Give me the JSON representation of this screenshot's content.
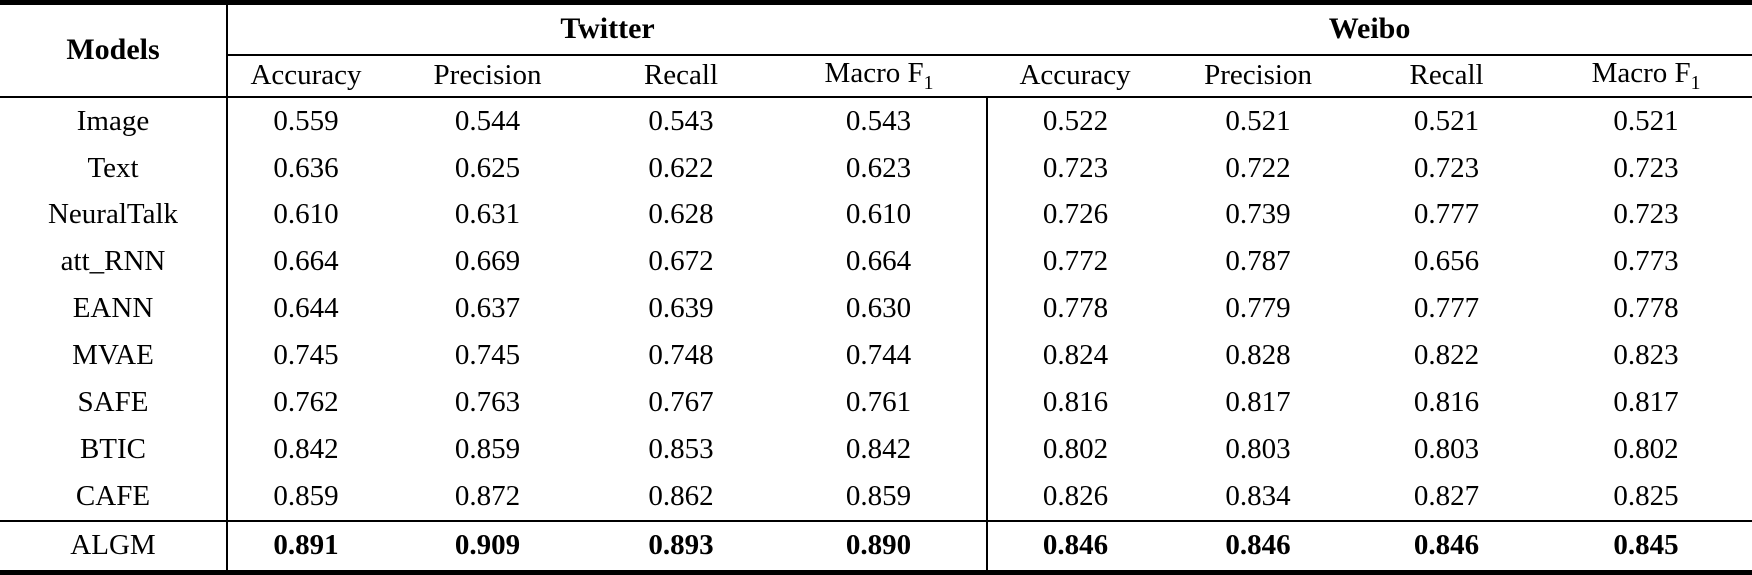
{
  "table": {
    "corner_header": "Models",
    "groups": [
      {
        "label": "Twitter"
      },
      {
        "label": "Weibo"
      }
    ],
    "subheaders": [
      {
        "label": "Accuracy"
      },
      {
        "label": "Precision"
      },
      {
        "label": "Recall"
      },
      {
        "label": "Macro F",
        "sub": "1"
      },
      {
        "label": "Accuracy"
      },
      {
        "label": "Precision"
      },
      {
        "label": "Recall"
      },
      {
        "label": "Macro F",
        "sub": "1"
      }
    ],
    "rows": [
      {
        "model": "Image",
        "twitter": [
          "0.559",
          "0.544",
          "0.543",
          "0.543"
        ],
        "weibo": [
          "0.522",
          "0.521",
          "0.521",
          "0.521"
        ],
        "highlight": false
      },
      {
        "model": "Text",
        "twitter": [
          "0.636",
          "0.625",
          "0.622",
          "0.623"
        ],
        "weibo": [
          "0.723",
          "0.722",
          "0.723",
          "0.723"
        ],
        "highlight": false
      },
      {
        "model": "NeuralTalk",
        "twitter": [
          "0.610",
          "0.631",
          "0.628",
          "0.610"
        ],
        "weibo": [
          "0.726",
          "0.739",
          "0.777",
          "0.723"
        ],
        "highlight": false
      },
      {
        "model": "att_RNN",
        "twitter": [
          "0.664",
          "0.669",
          "0.672",
          "0.664"
        ],
        "weibo": [
          "0.772",
          "0.787",
          "0.656",
          "0.773"
        ],
        "highlight": false
      },
      {
        "model": "EANN",
        "twitter": [
          "0.644",
          "0.637",
          "0.639",
          "0.630"
        ],
        "weibo": [
          "0.778",
          "0.779",
          "0.777",
          "0.778"
        ],
        "highlight": false
      },
      {
        "model": "MVAE",
        "twitter": [
          "0.745",
          "0.745",
          "0.748",
          "0.744"
        ],
        "weibo": [
          "0.824",
          "0.828",
          "0.822",
          "0.823"
        ],
        "highlight": false
      },
      {
        "model": "SAFE",
        "twitter": [
          "0.762",
          "0.763",
          "0.767",
          "0.761"
        ],
        "weibo": [
          "0.816",
          "0.817",
          "0.816",
          "0.817"
        ],
        "highlight": false
      },
      {
        "model": "BTIC",
        "twitter": [
          "0.842",
          "0.859",
          "0.853",
          "0.842"
        ],
        "weibo": [
          "0.802",
          "0.803",
          "0.803",
          "0.802"
        ],
        "highlight": false
      },
      {
        "model": "CAFE",
        "twitter": [
          "0.859",
          "0.872",
          "0.862",
          "0.859"
        ],
        "weibo": [
          "0.826",
          "0.834",
          "0.827",
          "0.825"
        ],
        "highlight": false
      },
      {
        "model": "ALGM",
        "twitter": [
          "0.891",
          "0.909",
          "0.893",
          "0.890"
        ],
        "weibo": [
          "0.846",
          "0.846",
          "0.846",
          "0.845"
        ],
        "highlight": true
      }
    ],
    "colors": {
      "text": "#000000",
      "background": "#ffffff",
      "rule": "#000000"
    }
  }
}
